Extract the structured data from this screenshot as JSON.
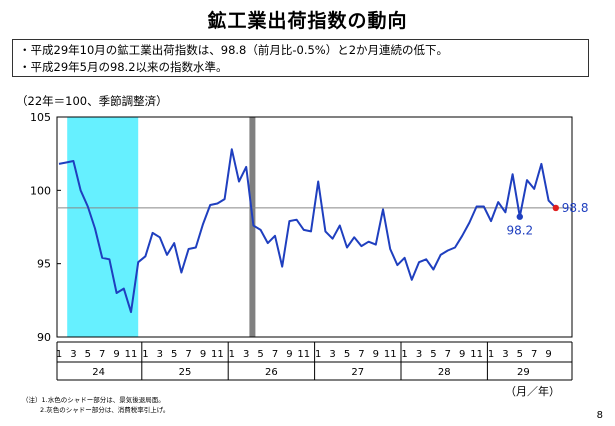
{
  "page": {
    "title": "鉱工業出荷指数の動向",
    "bullets": [
      "・平成29年10月の鉱工業出荷指数は、98.8（前月比-0.5%）と2か月連続の低下。",
      "・平成29年5月の98.2以来の指数水準。"
    ],
    "unit_note": "（22年＝100、季節調整済）",
    "footnotes": [
      "（注）1.水色のシャドー部分は、景気後退局面。",
      "2.灰色のシャドー部分は、消費税率引上げ。"
    ],
    "page_number": "8"
  },
  "chart_data": {
    "type": "line",
    "ylim": [
      90,
      105
    ],
    "yticks": [
      90,
      95,
      100,
      105
    ],
    "ytick_labels": [
      "90",
      "95",
      "100",
      "105"
    ],
    "x_axis_label": "（月／年）",
    "years": [
      "24",
      "25",
      "26",
      "27",
      "28",
      "29"
    ],
    "month_labels": [
      "1",
      "3",
      "5",
      "7",
      "9",
      "11"
    ],
    "month_labels_last": [
      "1",
      "3",
      "5",
      "7",
      "9"
    ],
    "series": [
      {
        "values": [
          101.8,
          101.9,
          102.0,
          100.0,
          98.9,
          97.4,
          95.4,
          95.3,
          93.0,
          93.3,
          91.7,
          95.1,
          95.5,
          97.1,
          96.8,
          95.6,
          96.4,
          94.4,
          96.0,
          96.1,
          97.7,
          99.0,
          99.1,
          99.4,
          102.8,
          100.6,
          101.6,
          97.6,
          97.3,
          96.4,
          96.9,
          94.8,
          97.9,
          98.0,
          97.3,
          97.2,
          100.6,
          97.2,
          96.7,
          97.6,
          96.1,
          96.8,
          96.2,
          96.5,
          96.3,
          98.7,
          96.0,
          94.9,
          95.4,
          93.9,
          95.1,
          95.3,
          94.6,
          95.6,
          95.9,
          96.1,
          96.9,
          97.8,
          98.9,
          98.9,
          97.9,
          99.2,
          98.5,
          101.1,
          98.2,
          100.7,
          100.1,
          101.8,
          99.3,
          98.8
        ],
        "color": "#1f3fbf"
      }
    ],
    "highlight_points": [
      {
        "index": 64,
        "value": 98.2,
        "label": "98.2",
        "color": "#1f3fbf"
      },
      {
        "index": 69,
        "value": 98.8,
        "label": "98.8",
        "color": "#e02020"
      }
    ],
    "reference_line": {
      "value": 98.8,
      "color": "#888888"
    },
    "recession_shading": {
      "start_index": 1,
      "end_index": 11,
      "color": "#66f0ff"
    },
    "tax_hike_shading": {
      "index": 27,
      "color": "#808080"
    },
    "grid": false
  }
}
